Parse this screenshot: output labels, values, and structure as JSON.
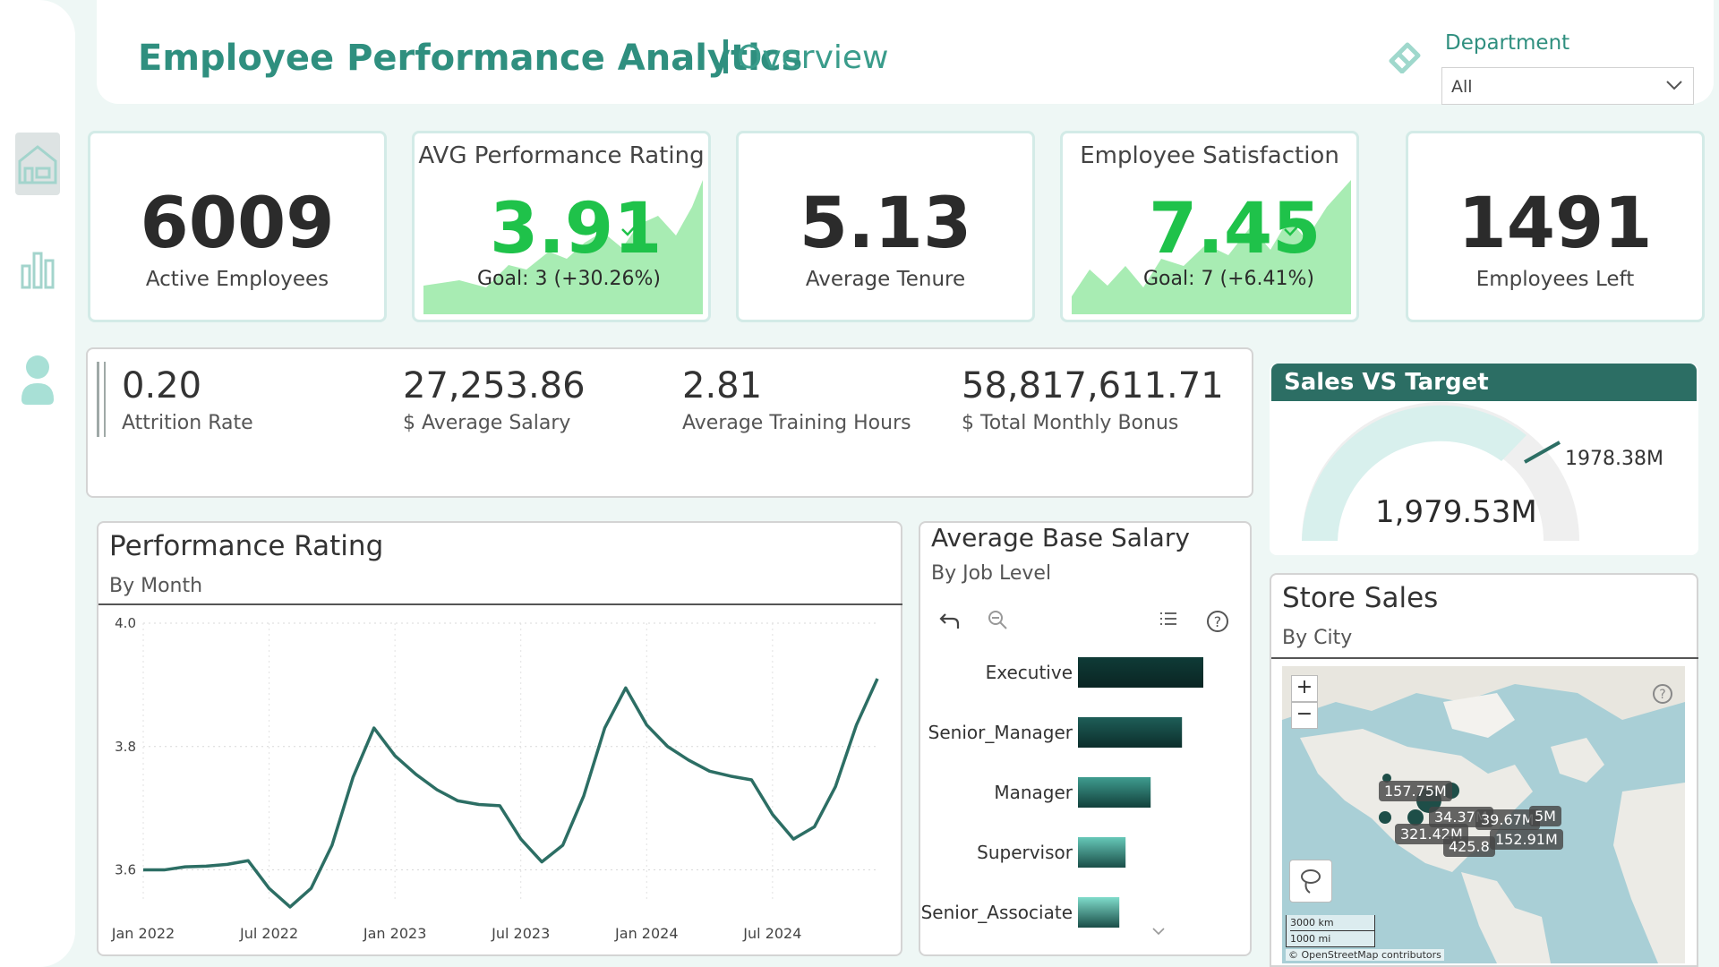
{
  "header": {
    "title": "Employee Performance Analytics",
    "subtitle": "Overview",
    "department_label": "Department",
    "department_value": "All"
  },
  "nav": {
    "icons": [
      "home-icon",
      "bar-chart-icon",
      "person-icon"
    ]
  },
  "kpis": {
    "active_employees": {
      "value": "6009",
      "label": "Active Employees"
    },
    "performance": {
      "header": "AVG Performance Rating",
      "value": "3.91",
      "goal": "Goal: 3 (+30.26%)"
    },
    "tenure": {
      "value": "5.13",
      "label": "Average Tenure"
    },
    "satisfaction": {
      "header": "Employee Satisfaction",
      "value": "7.45",
      "goal": "Goal: 7 (+6.41%)"
    },
    "employees_left": {
      "value": "1491",
      "label": "Employees Left"
    }
  },
  "stats": [
    {
      "value": "0.20",
      "label": "Attrition Rate"
    },
    {
      "value": "27,253.86",
      "label": "$ Average Salary"
    },
    {
      "value": "2.81",
      "label": "Average Training Hours"
    },
    {
      "value": "58,817,611.71",
      "label": "$ Total Monthly Bonus"
    }
  ],
  "gauge": {
    "title": "Sales VS Target",
    "value": "1,979.53M",
    "target": "1978.38M"
  },
  "store_sales": {
    "title": "Store Sales",
    "subtitle": "By City",
    "labels": [
      "157.75M",
      "34.37M",
      "39.67M",
      "5M",
      "321.42M",
      "425.8",
      "152.91M"
    ],
    "scale_km": "3000 km",
    "scale_mi": "1000 mi",
    "attribution": "© OpenStreetMap contributors",
    "zoom_in": "+",
    "zoom_out": "−"
  },
  "chart_data": [
    {
      "type": "line",
      "title": "Performance Rating",
      "subtitle": "By Month",
      "xlabel": "",
      "ylabel": "",
      "ylim": [
        3.55,
        4.0
      ],
      "yticks": [
        4.0,
        3.8,
        3.6
      ],
      "ytick_labels": [
        "4.0",
        "3.8",
        "3.6"
      ],
      "xtick_labels": [
        "Jan 2022",
        "Jul 2022",
        "Jan 2023",
        "Jul 2023",
        "Jan 2024",
        "Jul 2024"
      ],
      "x": [
        "2022-01",
        "2022-02",
        "2022-03",
        "2022-04",
        "2022-05",
        "2022-06",
        "2022-07",
        "2022-08",
        "2022-09",
        "2022-10",
        "2022-11",
        "2022-12",
        "2023-01",
        "2023-02",
        "2023-03",
        "2023-04",
        "2023-05",
        "2023-06",
        "2023-07",
        "2023-08",
        "2023-09",
        "2023-10",
        "2023-11",
        "2023-12",
        "2024-01",
        "2024-02",
        "2024-03",
        "2024-04",
        "2024-05",
        "2024-06",
        "2024-07",
        "2024-08",
        "2024-09",
        "2024-10",
        "2024-11",
        "2024-12"
      ],
      "values": [
        3.6,
        3.6,
        3.605,
        3.606,
        3.609,
        3.615,
        3.57,
        3.54,
        3.57,
        3.64,
        3.75,
        3.83,
        3.785,
        3.755,
        3.73,
        3.712,
        3.706,
        3.704,
        3.65,
        3.613,
        3.64,
        3.72,
        3.83,
        3.895,
        3.835,
        3.8,
        3.778,
        3.76,
        3.752,
        3.746,
        3.69,
        3.65,
        3.67,
        3.735,
        3.835,
        3.91
      ],
      "grid": true
    },
    {
      "type": "bar",
      "orientation": "horizontal",
      "title": "Average Base Salary",
      "subtitle": "By Job Level",
      "categories": [
        "Executive",
        "Senior_Manager",
        "Manager",
        "Supervisor",
        "Senior_Associate"
      ],
      "values": [
        100,
        83,
        58,
        38,
        33
      ]
    }
  ],
  "colors": {
    "accent": "#2f8f7f",
    "line": "#2c6e64",
    "green": "#1fc24a",
    "sparkline": "#a8ecb3",
    "gauge_fill": "#d8f0ed",
    "gauge_rest": "#efefef"
  }
}
